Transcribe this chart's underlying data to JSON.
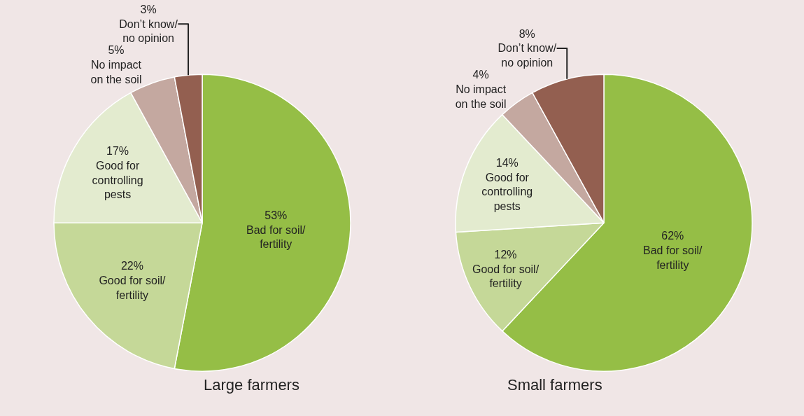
{
  "chart_data": [
    {
      "type": "pie",
      "title": "Large farmers",
      "categories": [
        "Bad for soil/\nfertility",
        "Good for soil/\nfertility",
        "Good for\ncontrolling\npests",
        "No impact\non the soil",
        "Don’t know/\nno opinion"
      ],
      "values": [
        53,
        22,
        17,
        5,
        3
      ],
      "value_labels": [
        "53%",
        "22%",
        "17%",
        "5%",
        "3%"
      ],
      "colors": [
        "#95be46",
        "#c5d898",
        "#e3ebcf",
        "#c4a8a0",
        "#935f50"
      ],
      "legend": false
    },
    {
      "type": "pie",
      "title": "Small farmers",
      "categories": [
        "Bad for soil/\nfertility",
        "Good for soil/\nfertility",
        "Good for\ncontrolling\npests",
        "No impact\non the soil",
        "Don’t know/\nno opinion"
      ],
      "values": [
        62,
        12,
        14,
        4,
        8
      ],
      "value_labels": [
        "62%",
        "12%",
        "14%",
        "4%",
        "8%"
      ],
      "colors": [
        "#95be46",
        "#c5d898",
        "#e3ebcf",
        "#c4a8a0",
        "#935f50"
      ],
      "legend": false
    }
  ]
}
